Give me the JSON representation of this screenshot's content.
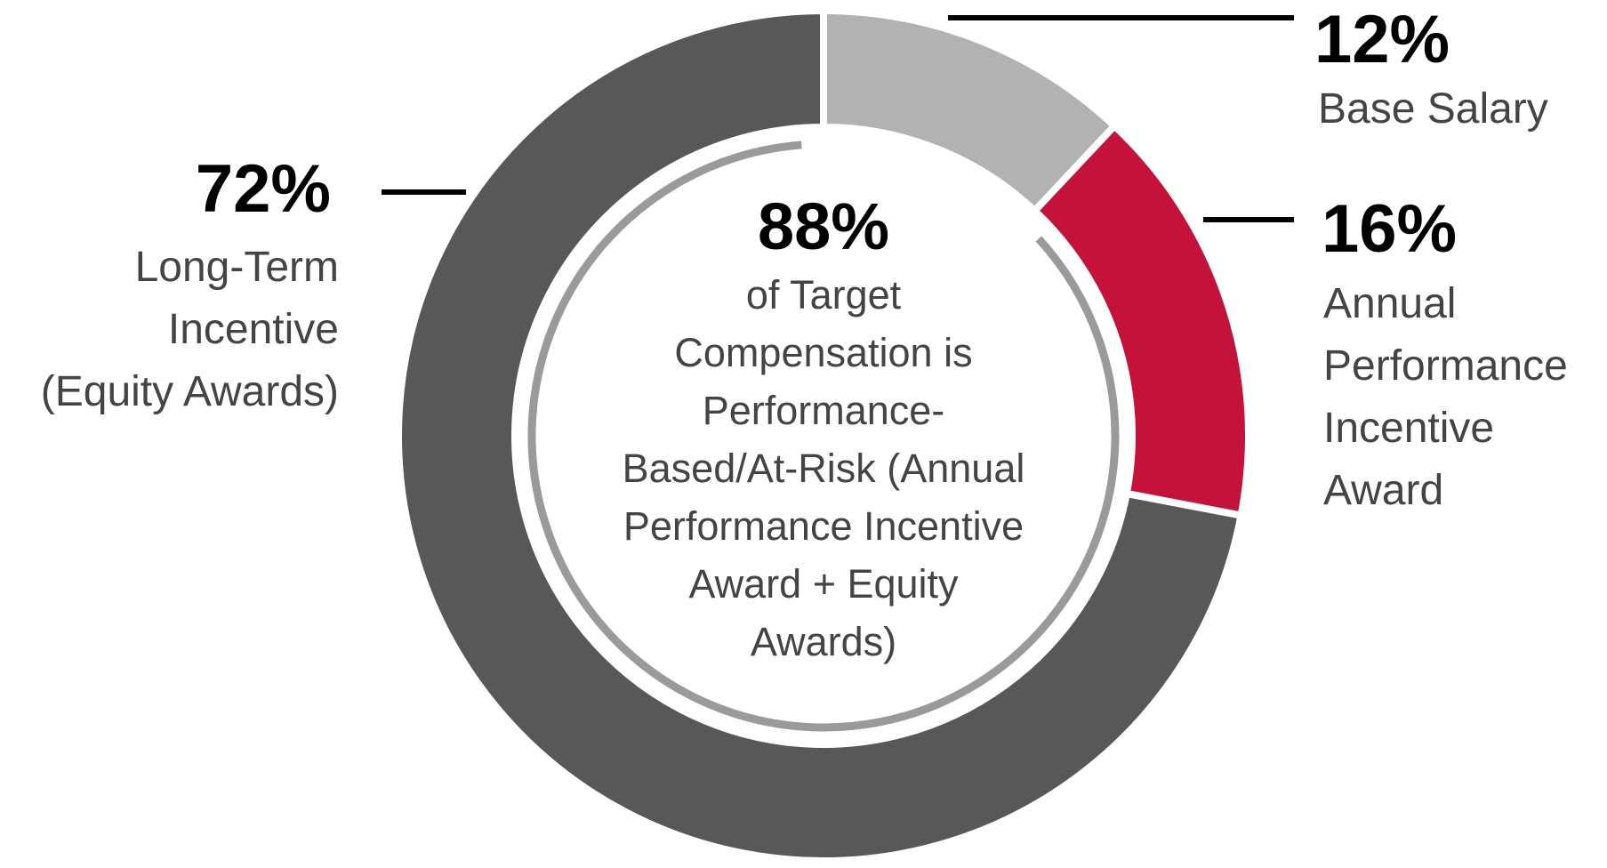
{
  "chart_data": {
    "type": "pie",
    "donut": true,
    "slices": [
      {
        "label": "Base Salary",
        "value": 12,
        "value_text": "12%",
        "color": "#b2b2b2",
        "label_lines": [
          "Base Salary"
        ]
      },
      {
        "label": "Annual Performance Incentive Award",
        "value": 16,
        "value_text": "16%",
        "color": "#c4123b",
        "label_lines": [
          "Annual",
          "Performance",
          "Incentive",
          "Award"
        ]
      },
      {
        "label": "Long-Term Incentive (Equity Awards)",
        "value": 72,
        "value_text": "72%",
        "color": "#585858",
        "label_lines": [
          "Long-Term",
          "Incentive",
          "(Equity Awards)"
        ]
      }
    ],
    "center": {
      "value": 88,
      "value_text": "88%",
      "caption_lines": [
        "of Target",
        "Compensation is",
        "Performance-",
        "Based/At-Risk (Annual",
        "Performance Incentive",
        "Award + Equity",
        "Awards)"
      ]
    },
    "inner_arc_color": "#9a9a9a"
  }
}
